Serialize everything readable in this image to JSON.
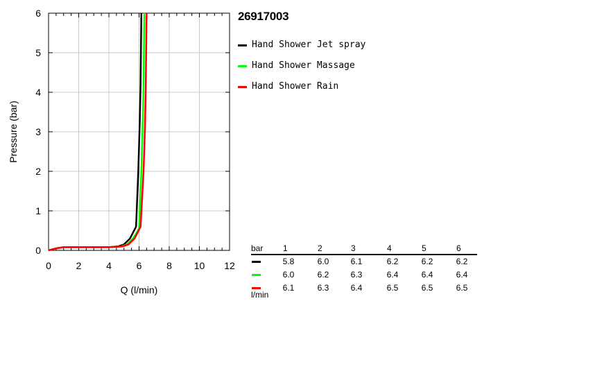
{
  "chart_data": {
    "type": "line",
    "title": "26917003",
    "xlabel": "Q (l/min)",
    "ylabel": "Pressure (bar)",
    "xlim": [
      0,
      12
    ],
    "ylim": [
      0,
      6
    ],
    "xticks": [
      "0",
      "2",
      "4",
      "6",
      "8",
      "10",
      "12"
    ],
    "yticks": [
      "0",
      "1",
      "2",
      "3",
      "4",
      "5",
      "6"
    ],
    "grid": true,
    "legend_position": "right",
    "series": [
      {
        "name": "Hand Shower Jet spray",
        "color": "#000000",
        "points": [
          [
            0,
            0
          ],
          [
            0.5,
            0.05
          ],
          [
            1,
            0.08
          ],
          [
            2,
            0.08
          ],
          [
            3,
            0.08
          ],
          [
            4,
            0.08
          ],
          [
            4.6,
            0.1
          ],
          [
            5.0,
            0.15
          ],
          [
            5.4,
            0.3
          ],
          [
            5.8,
            0.6
          ],
          [
            5.95,
            2.0
          ],
          [
            6.05,
            3.3
          ],
          [
            6.1,
            4.2
          ],
          [
            6.15,
            6
          ]
        ]
      },
      {
        "name": "Hand Shower Massage",
        "color": "#00ff00",
        "points": [
          [
            0,
            0
          ],
          [
            0.5,
            0.05
          ],
          [
            1,
            0.08
          ],
          [
            2,
            0.08
          ],
          [
            3,
            0.08
          ],
          [
            4,
            0.08
          ],
          [
            4.8,
            0.1
          ],
          [
            5.2,
            0.15
          ],
          [
            5.6,
            0.3
          ],
          [
            6.0,
            0.55
          ],
          [
            6.15,
            2.0
          ],
          [
            6.25,
            3.3
          ],
          [
            6.3,
            4.2
          ],
          [
            6.35,
            6
          ]
        ]
      },
      {
        "name": "Hand Shower Rain",
        "color": "#ff0000",
        "points": [
          [
            0,
            0
          ],
          [
            0.5,
            0.05
          ],
          [
            1,
            0.08
          ],
          [
            2,
            0.08
          ],
          [
            3,
            0.08
          ],
          [
            4,
            0.08
          ],
          [
            4.9,
            0.1
          ],
          [
            5.3,
            0.15
          ],
          [
            5.7,
            0.3
          ],
          [
            6.1,
            0.6
          ],
          [
            6.3,
            2.0
          ],
          [
            6.4,
            3.2
          ],
          [
            6.45,
            4.3
          ],
          [
            6.5,
            6
          ]
        ]
      }
    ],
    "table": {
      "header_label": "bar",
      "unit_label": "l/min",
      "pressures": [
        "1",
        "2",
        "3",
        "4",
        "5",
        "6"
      ],
      "rows": [
        {
          "series": "Hand Shower Jet spray",
          "color": "#000000",
          "values": [
            "5.8",
            "6.0",
            "6.1",
            "6.2",
            "6.2",
            "6.2"
          ]
        },
        {
          "series": "Hand Shower Massage",
          "color": "#00ff00",
          "values": [
            "6.0",
            "6.2",
            "6.3",
            "6.4",
            "6.4",
            "6.4"
          ]
        },
        {
          "series": "Hand Shower Rain",
          "color": "#ff0000",
          "values": [
            "6.1",
            "6.3",
            "6.4",
            "6.5",
            "6.5",
            "6.5"
          ]
        }
      ]
    }
  }
}
